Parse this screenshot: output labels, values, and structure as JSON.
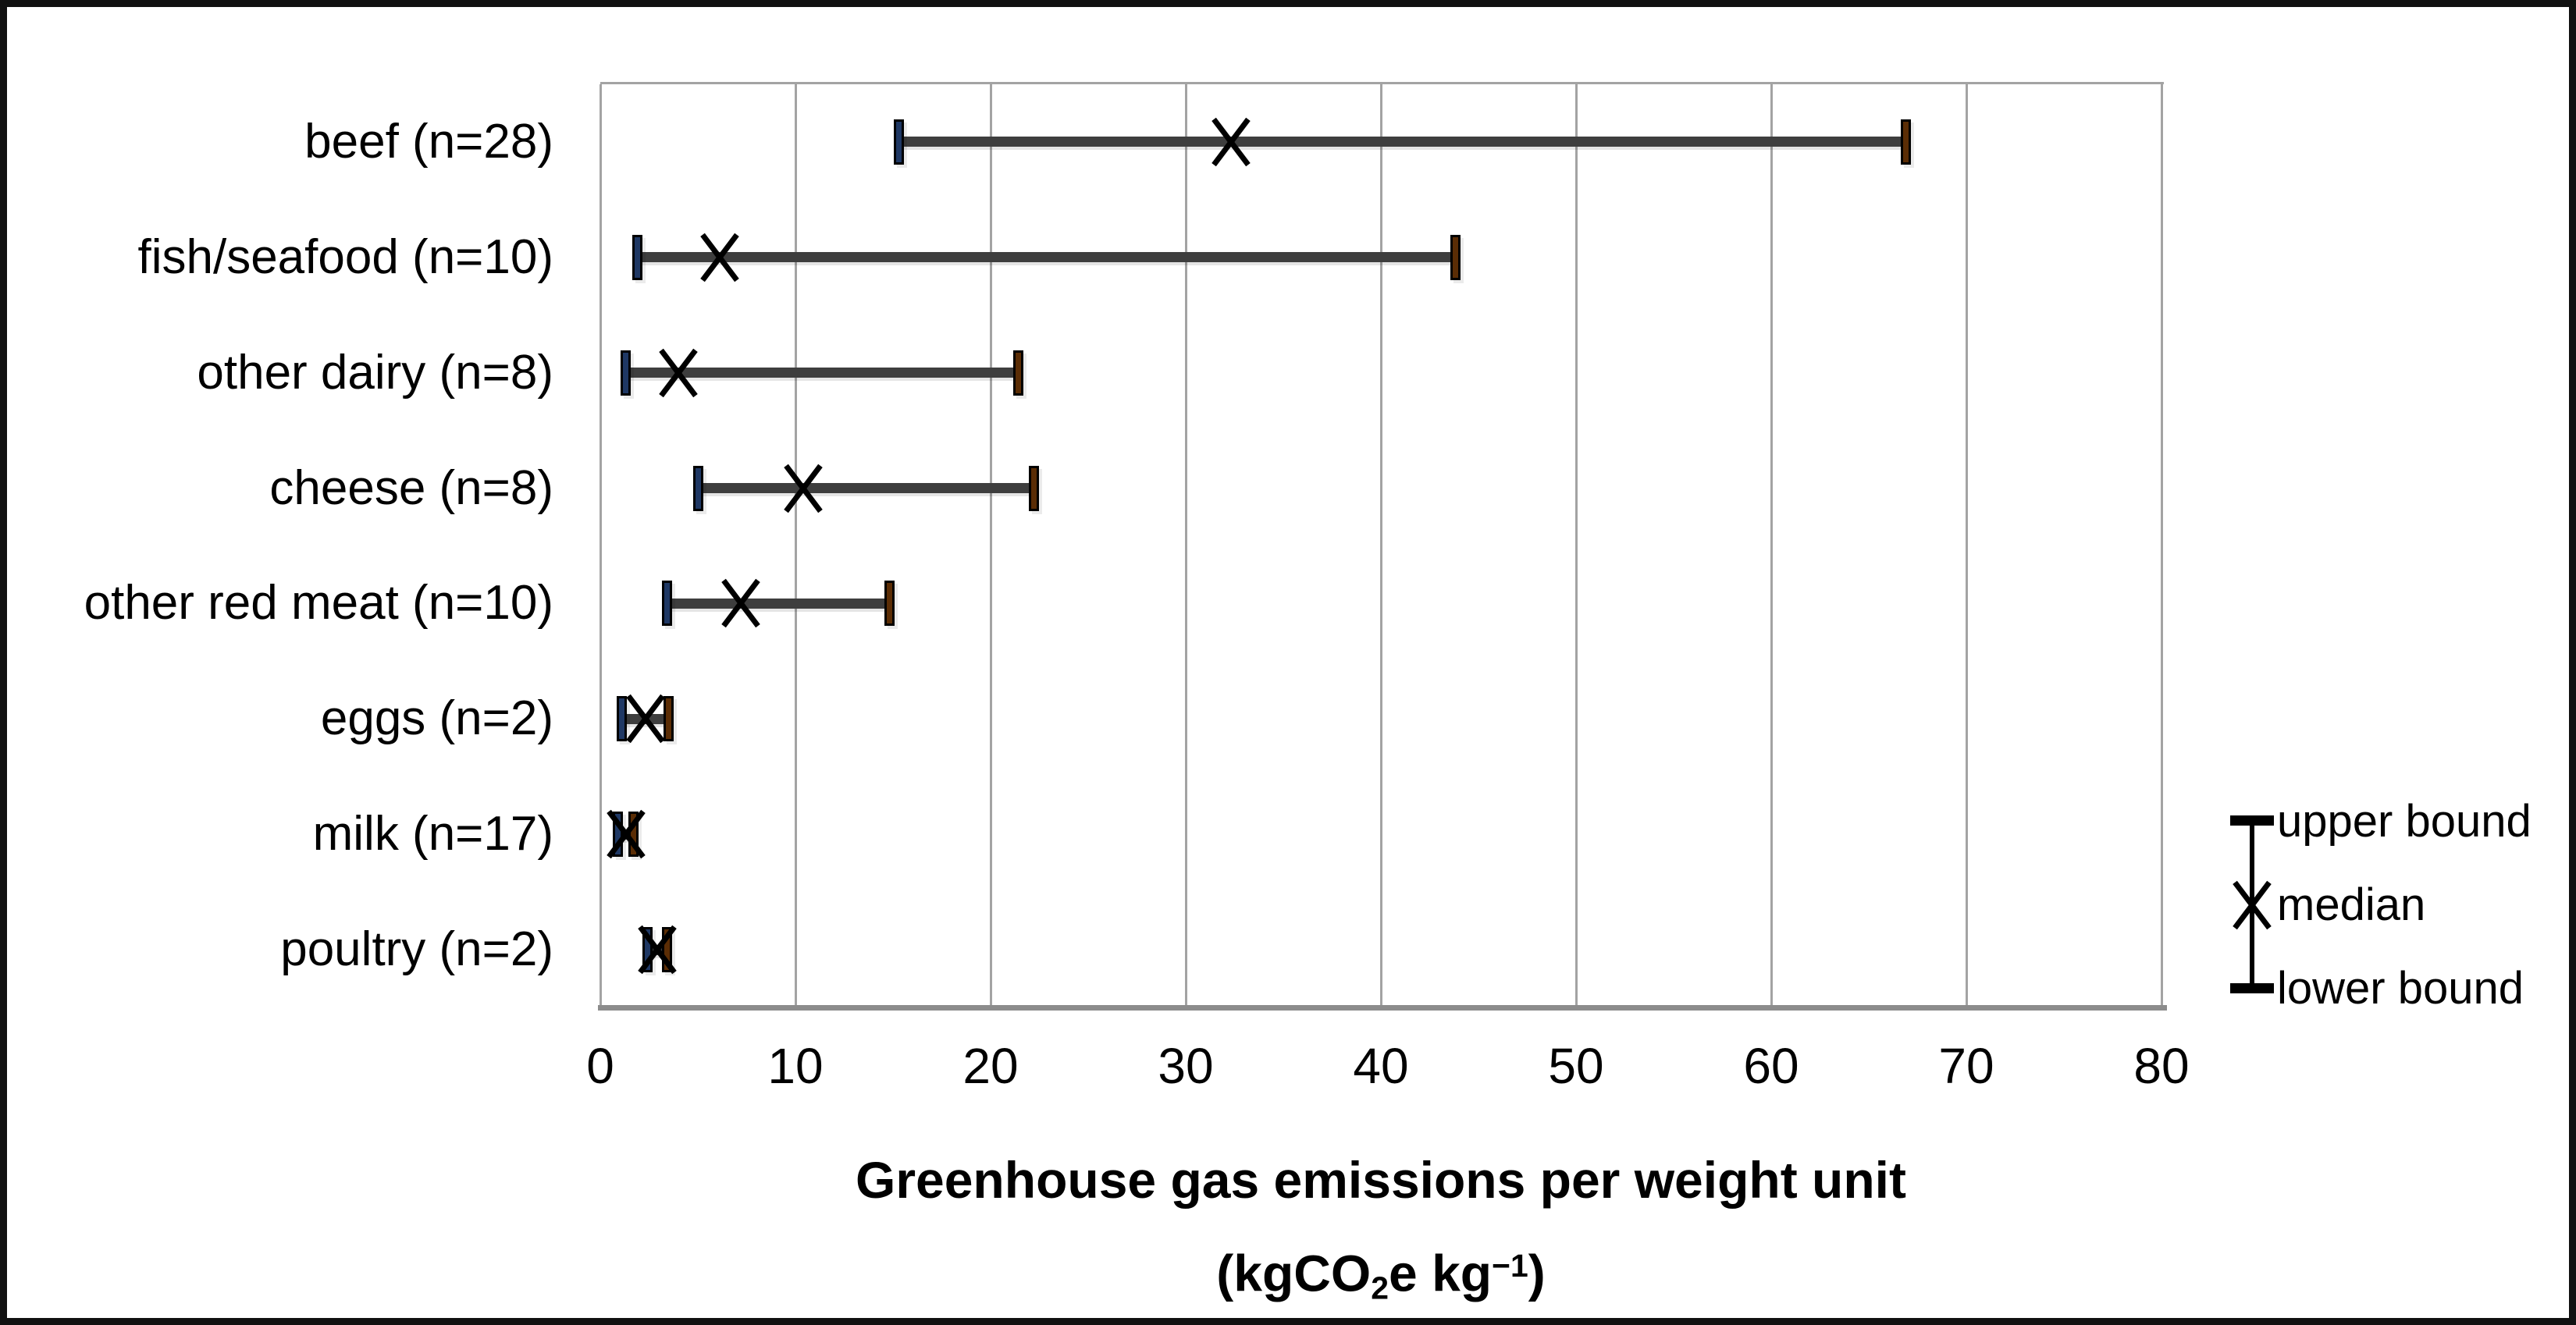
{
  "chart_data": {
    "type": "bar",
    "subtype": "horizontal-range-whisker",
    "title": "",
    "categories": [
      "beef (n=28)",
      "fish/seafood (n=10)",
      "other dairy (n=8)",
      "cheese (n=8)",
      "other red meat (n=10)",
      "eggs (n=2)",
      "milk (n=17)",
      "poultry (n=2)"
    ],
    "series": [
      {
        "name": "lower bound",
        "values": [
          15.3,
          1.9,
          1.3,
          5.0,
          3.4,
          1.1,
          0.9,
          2.4
        ]
      },
      {
        "name": "median",
        "values": [
          32.3,
          6.1,
          4.0,
          10.4,
          7.2,
          2.3,
          1.3,
          2.9
        ]
      },
      {
        "name": "upper bound",
        "values": [
          66.9,
          43.8,
          21.4,
          22.2,
          14.8,
          3.5,
          1.7,
          3.4
        ]
      }
    ],
    "xlabel_line1": "Greenhouse gas emissions per weight unit",
    "xlabel_line2_segments": [
      {
        "text": "(kgCO"
      },
      {
        "text": "2",
        "script": "sub"
      },
      {
        "text": "e kg",
        "script": "normal"
      },
      {
        "text": "−1",
        "script": "sup"
      },
      {
        "text": ")",
        "script": "normal"
      }
    ],
    "xlim": [
      0,
      80
    ],
    "xticks": [
      0,
      10,
      20,
      30,
      40,
      50,
      60,
      70,
      80
    ],
    "grid": true,
    "legend_position": "right"
  },
  "legend": {
    "items": [
      {
        "label": "upper bound",
        "marker": "dash"
      },
      {
        "label": "median",
        "marker": "x"
      },
      {
        "label": "lower bound",
        "marker": "dash"
      }
    ]
  },
  "colors": {
    "grid": "#a3a3a3",
    "axis": "#8c8c8c",
    "bar": "#3e3e3e",
    "lower_tick": "#1f3864",
    "upper_tick": "#5b2d05",
    "median": "#000000",
    "text": "#000000",
    "frame": "#111111"
  }
}
